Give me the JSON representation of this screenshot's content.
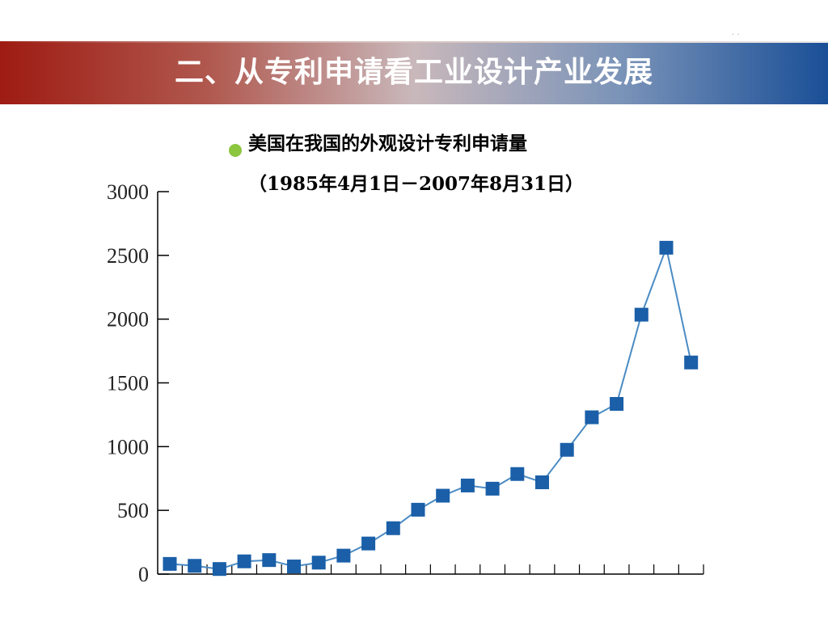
{
  "slide": {
    "title": "二、从专利申请看工业设计产业发展",
    "corner_mark": "· ·"
  },
  "bullet_color": "#8cc63f",
  "colors": {
    "banner_left": "#9e1b12",
    "banner_right": "#1a4f97",
    "series": "#4a8bc4",
    "marker": "#1a5fa8"
  },
  "chart_data": {
    "type": "line",
    "title": "美国在我国的外观设计专利申请量",
    "subtitle": "（1985年4月1日－2007年8月31日）",
    "xlabel": "",
    "ylabel": "",
    "ylim": [
      0,
      3000
    ],
    "yticks": [
      "3000",
      "2500",
      "2000",
      "1500",
      "1000",
      "500",
      "0"
    ],
    "x_count": 22,
    "grid": false,
    "legend": "none",
    "series": [
      {
        "values": [
          80,
          65,
          40,
          100,
          110,
          60,
          90,
          145,
          240,
          360,
          505,
          615,
          695,
          670,
          785,
          720,
          975,
          1230,
          1335,
          2035,
          2560,
          1660
        ]
      }
    ]
  }
}
